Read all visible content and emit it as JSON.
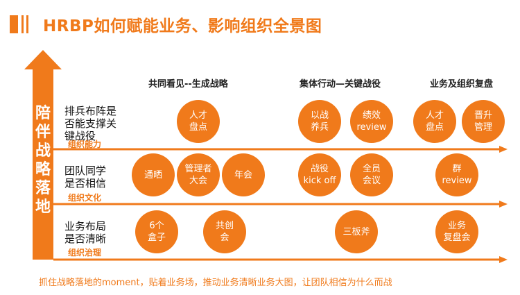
{
  "title": "HRBP如何赋能业务、影响组织全景图",
  "vertical_label": [
    "陪",
    "伴",
    "战",
    "略",
    "落",
    "地"
  ],
  "columns": [
    "共同看见--生成战略",
    "集体行动—关键战役",
    "业务及组织复盘"
  ],
  "rows": [
    {
      "label_lines": [
        "排兵布阵是",
        "否能支撑关",
        "键战役"
      ],
      "tag": "组织能力"
    },
    {
      "label_lines": [
        "团队同学",
        "是否相信"
      ],
      "tag": "组织文化"
    },
    {
      "label_lines": [
        "业务布局",
        "是否清晰"
      ],
      "tag": "组织治理"
    }
  ],
  "circles": [
    {
      "lines": [
        "人才",
        "盘点"
      ]
    },
    {
      "lines": [
        "以战",
        "养兵"
      ]
    },
    {
      "lines": [
        "绩效",
        "review"
      ]
    },
    {
      "lines": [
        "人才",
        "盘点"
      ]
    },
    {
      "lines": [
        "晋升",
        "管理"
      ]
    },
    {
      "lines": [
        "通晒"
      ]
    },
    {
      "lines": [
        "管理者",
        "大会"
      ]
    },
    {
      "lines": [
        "年会"
      ]
    },
    {
      "lines": [
        "战役",
        "kick off"
      ]
    },
    {
      "lines": [
        "全员",
        "会议"
      ]
    },
    {
      "lines": [
        "群",
        "review"
      ]
    },
    {
      "lines": [
        "6个",
        "盒子"
      ]
    },
    {
      "lines": [
        "共创",
        "会"
      ]
    },
    {
      "lines": [
        "三板斧"
      ]
    },
    {
      "lines": [
        "业务",
        "复盘会"
      ]
    }
  ],
  "footer": "抓住战略落地的moment，贴着业务场，推动业务清晰业务大图，让团队相信为什么而战",
  "colors": {
    "accent": "#F07A1B",
    "text": "#111111"
  }
}
